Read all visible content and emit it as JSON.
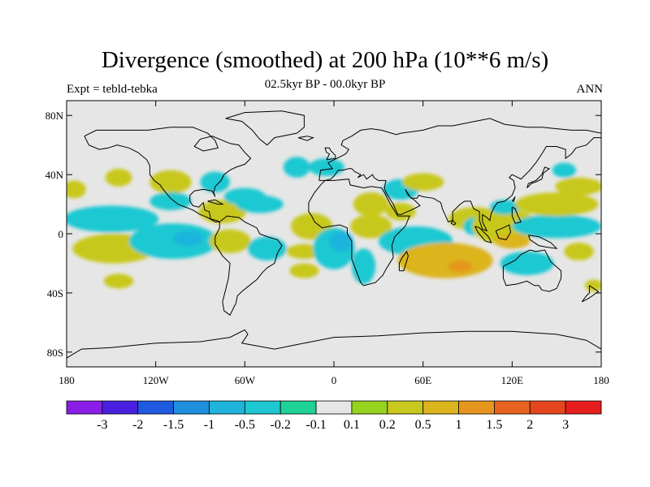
{
  "header": {
    "title": "Divergence (smoothed) at 200 hPa (10**6 m/s)",
    "left_string": "Expt = tebld-tebka",
    "center_string": "02.5kyr BP - 00.0kyr BP",
    "right_string": "ANN"
  },
  "map": {
    "projection": "cylindrical equidistant",
    "background_color": "#e6e6e6",
    "coastline_color": "#000000",
    "lon_range": [
      -180,
      180
    ],
    "lat_range": [
      -90,
      90
    ],
    "y_ticks": [
      {
        "lat": 80,
        "label": "80N"
      },
      {
        "lat": 40,
        "label": "40N"
      },
      {
        "lat": 0,
        "label": "0"
      },
      {
        "lat": -40,
        "label": "40S"
      },
      {
        "lat": -80,
        "label": "80S"
      }
    ],
    "x_ticks": [
      {
        "lon": -180,
        "label": "180"
      },
      {
        "lon": -120,
        "label": "120W"
      },
      {
        "lon": -60,
        "label": "60W"
      },
      {
        "lon": 0,
        "label": "0"
      },
      {
        "lon": 60,
        "label": "60E"
      },
      {
        "lon": 120,
        "label": "120E"
      },
      {
        "lon": 180,
        "label": "180"
      }
    ],
    "shaded_regions": [
      {
        "lon": -175,
        "lat": 30,
        "rx": 8,
        "ry": 6,
        "value": 0.3
      },
      {
        "lon": -145,
        "lat": 38,
        "rx": 9,
        "ry": 6,
        "value": 0.3
      },
      {
        "lon": -150,
        "lat": 10,
        "rx": 32,
        "ry": 9,
        "value": -0.3
      },
      {
        "lon": -148,
        "lat": -10,
        "rx": 28,
        "ry": 10,
        "value": 0.3
      },
      {
        "lon": -145,
        "lat": -32,
        "rx": 10,
        "ry": 5,
        "value": 0.3
      },
      {
        "lon": -110,
        "lat": 35,
        "rx": 14,
        "ry": 8,
        "value": 0.3
      },
      {
        "lon": -110,
        "lat": 22,
        "rx": 14,
        "ry": 6,
        "value": -0.3
      },
      {
        "lon": -108,
        "lat": -5,
        "rx": 30,
        "ry": 12,
        "value": -0.3
      },
      {
        "lon": -98,
        "lat": -3,
        "rx": 10,
        "ry": 5,
        "value": -0.7
      },
      {
        "lon": -80,
        "lat": 35,
        "rx": 10,
        "ry": 7,
        "value": -0.3
      },
      {
        "lon": -75,
        "lat": 15,
        "rx": 16,
        "ry": 8,
        "value": 0.3
      },
      {
        "lon": -60,
        "lat": 25,
        "rx": 14,
        "ry": 6,
        "value": -0.3
      },
      {
        "lon": -70,
        "lat": -5,
        "rx": 14,
        "ry": 8,
        "value": 0.3
      },
      {
        "lon": -50,
        "lat": 20,
        "rx": 16,
        "ry": 6,
        "value": -0.3
      },
      {
        "lon": -45,
        "lat": -10,
        "rx": 13,
        "ry": 8,
        "value": -0.3
      },
      {
        "lon": -25,
        "lat": 45,
        "rx": 9,
        "ry": 7,
        "value": -0.3
      },
      {
        "lon": -5,
        "lat": 45,
        "rx": 12,
        "ry": 6,
        "value": -0.3
      },
      {
        "lon": -15,
        "lat": 5,
        "rx": 14,
        "ry": 9,
        "value": 0.3
      },
      {
        "lon": -20,
        "lat": -12,
        "rx": 12,
        "ry": 5,
        "value": 0.3
      },
      {
        "lon": -20,
        "lat": -25,
        "rx": 10,
        "ry": 5,
        "value": 0.3
      },
      {
        "lon": 0,
        "lat": -10,
        "rx": 14,
        "ry": 14,
        "value": -0.3
      },
      {
        "lon": 5,
        "lat": -5,
        "rx": 8,
        "ry": 7,
        "value": -0.7
      },
      {
        "lon": 25,
        "lat": 20,
        "rx": 12,
        "ry": 8,
        "value": 0.3
      },
      {
        "lon": 25,
        "lat": 5,
        "rx": 14,
        "ry": 8,
        "value": 0.3
      },
      {
        "lon": 20,
        "lat": -22,
        "rx": 8,
        "ry": 12,
        "value": -0.3
      },
      {
        "lon": 45,
        "lat": 30,
        "rx": 12,
        "ry": 7,
        "value": -0.3
      },
      {
        "lon": 45,
        "lat": 15,
        "rx": 10,
        "ry": 6,
        "value": 0.3
      },
      {
        "lon": 60,
        "lat": 35,
        "rx": 14,
        "ry": 6,
        "value": 0.3
      },
      {
        "lon": 55,
        "lat": -5,
        "rx": 25,
        "ry": 10,
        "value": -0.3
      },
      {
        "lon": 75,
        "lat": -18,
        "rx": 32,
        "ry": 12,
        "value": 0.5
      },
      {
        "lon": 85,
        "lat": -22,
        "rx": 8,
        "ry": 4,
        "value": 1.0
      },
      {
        "lon": 95,
        "lat": 10,
        "rx": 18,
        "ry": 8,
        "value": 0.3
      },
      {
        "lon": 95,
        "lat": 5,
        "rx": 8,
        "ry": 6,
        "value": -0.3
      },
      {
        "lon": 115,
        "lat": 5,
        "rx": 22,
        "ry": 12,
        "value": 0.3
      },
      {
        "lon": 120,
        "lat": -5,
        "rx": 12,
        "ry": 5,
        "value": 0.5
      },
      {
        "lon": 115,
        "lat": 18,
        "rx": 10,
        "ry": 5,
        "value": -0.3
      },
      {
        "lon": 130,
        "lat": -20,
        "rx": 18,
        "ry": 8,
        "value": -0.3
      },
      {
        "lon": 150,
        "lat": 5,
        "rx": 30,
        "ry": 8,
        "value": -0.3
      },
      {
        "lon": 150,
        "lat": 20,
        "rx": 28,
        "ry": 8,
        "value": 0.3
      },
      {
        "lon": 165,
        "lat": 32,
        "rx": 16,
        "ry": 6,
        "value": 0.3
      },
      {
        "lon": 155,
        "lat": 43,
        "rx": 8,
        "ry": 5,
        "value": -0.3
      },
      {
        "lon": 165,
        "lat": -12,
        "rx": 10,
        "ry": 6,
        "value": 0.3
      },
      {
        "lon": 175,
        "lat": -35,
        "rx": 6,
        "ry": 4,
        "value": 0.3
      }
    ]
  },
  "colorbar": {
    "colors": [
      "#8b1ee6",
      "#4a20e0",
      "#1e5ae0",
      "#1e8fdc",
      "#1eb4dc",
      "#1ec8d2",
      "#1ed296",
      "#e6e6e6",
      "#96d21e",
      "#c8c81e",
      "#dcb41e",
      "#e6961e",
      "#e6641e",
      "#e6461e",
      "#e61e1e"
    ],
    "labels": [
      "-3",
      "-2",
      "-1.5",
      "-1",
      "-0.5",
      "-0.2",
      "-0.1",
      "0.1",
      "0.2",
      "0.5",
      "1",
      "1.5",
      "2",
      "3"
    ],
    "levels": [
      -3,
      -2,
      -1.5,
      -1,
      -0.5,
      -0.2,
      -0.1,
      0.1,
      0.2,
      0.5,
      1,
      1.5,
      2,
      3
    ]
  }
}
